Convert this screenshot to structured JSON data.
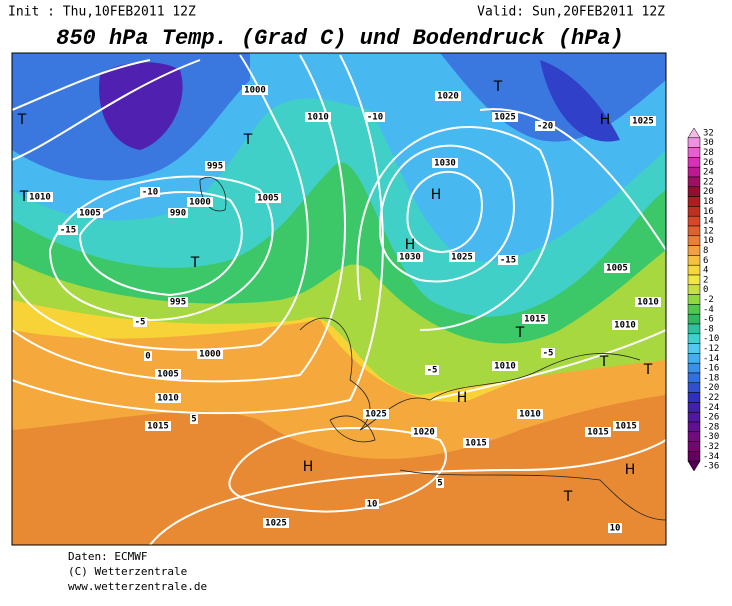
{
  "header": {
    "init": "Init : Thu,10FEB2011 12Z",
    "valid": "Valid: Sun,20FEB2011 12Z",
    "title": "850 hPa Temp. (Grad C) und Bodendruck (hPa)"
  },
  "legend": {
    "ticks": [
      32,
      30,
      28,
      26,
      24,
      22,
      20,
      18,
      16,
      14,
      12,
      10,
      8,
      6,
      4,
      2,
      0,
      -2,
      -4,
      -6,
      -8,
      -10,
      -12,
      -14,
      -16,
      -18,
      -20,
      -22,
      -24,
      -26,
      -28,
      -30,
      -32,
      -34,
      -36
    ],
    "colors": [
      "#f8b8e8",
      "#f090e0",
      "#e860d0",
      "#d830b8",
      "#c01890",
      "#a01060",
      "#901030",
      "#a82020",
      "#c03020",
      "#d84828",
      "#e06030",
      "#e88038",
      "#f0a040",
      "#f8c040",
      "#f8d838",
      "#f0e840",
      "#c8e040",
      "#90d840",
      "#50c850",
      "#30b860",
      "#30c0a0",
      "#40d0d0",
      "#50c8f0",
      "#40b0f0",
      "#3890e8",
      "#3070e0",
      "#3050d0",
      "#3030c0",
      "#4020b0",
      "#5018a0",
      "#601090",
      "#700c80",
      "#700870",
      "#600060",
      "#500050"
    ]
  },
  "map": {
    "labels": [
      "1000",
      "1010",
      "1005",
      "-10",
      "-15",
      "-5",
      "990",
      "995",
      "1000",
      "0",
      "1005",
      "1010",
      "1015",
      "1000",
      "995",
      "1005",
      "1010",
      "-10",
      "1020",
      "1030",
      "1030",
      "1025",
      "-15",
      "1025",
      "-20",
      "1025",
      "1005",
      "1010",
      "1015",
      "1010",
      "-5",
      "1010",
      "1015",
      "1025",
      "1020",
      "1015",
      "1010",
      "1015",
      "1025",
      "10",
      "10",
      "5",
      "5",
      "-5",
      "T",
      "T",
      "T",
      "T",
      "T",
      "H",
      "H",
      "H",
      "H",
      "T",
      "T",
      "T",
      "H",
      "T",
      "H"
    ],
    "footer": [
      "Daten: ECMWF",
      "(C) Wetterzentrale",
      "www.wetterzentrale.de"
    ]
  }
}
